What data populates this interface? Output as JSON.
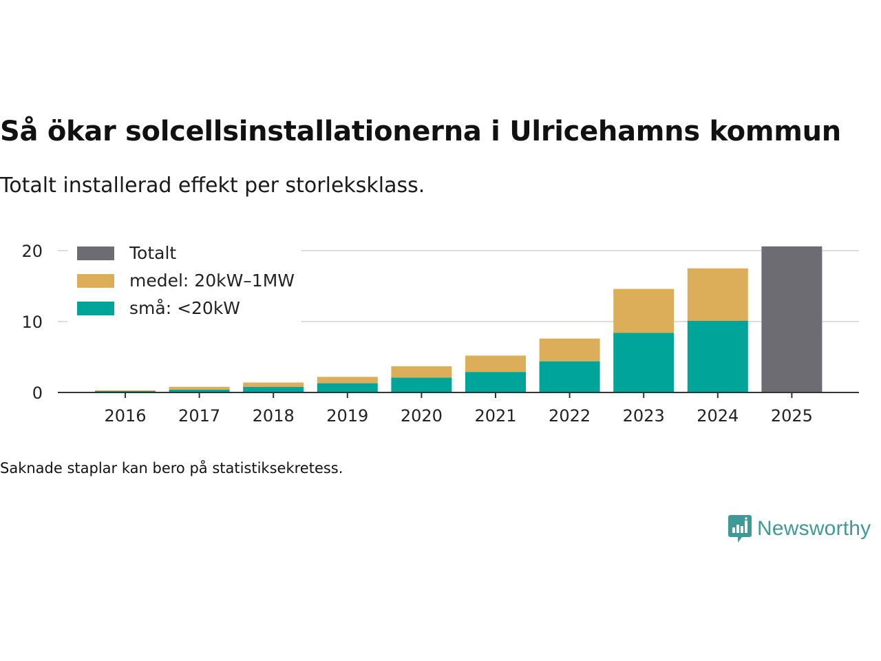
{
  "title": "Så ökar solcellsinstallationerna i Ulricehamns kommun",
  "subtitle": "Totalt installerad effekt per storleksklass.",
  "footnote": "Saknade staplar kan bero på statistiksekretess.",
  "brand": {
    "name": "Newsworthy",
    "icon": "newsworthy-logo-icon",
    "color": "#3d9a96"
  },
  "chart_data": {
    "type": "bar",
    "stacked": true,
    "title": "Så ökar solcellsinstallationerna i Ulricehamns kommun",
    "subtitle": "Totalt installerad effekt per storleksklass.",
    "xlabel": "",
    "ylabel": "",
    "ylim": [
      0,
      21
    ],
    "yticks": [
      0,
      10,
      20
    ],
    "grid": true,
    "legend_position": "top-left",
    "categories": [
      "2016",
      "2017",
      "2018",
      "2019",
      "2020",
      "2021",
      "2022",
      "2023",
      "2024",
      "2025"
    ],
    "series": [
      {
        "name": "små: <20kW",
        "color": "#00a499",
        "values": [
          0.2,
          0.4,
          0.8,
          1.3,
          2.1,
          2.9,
          4.4,
          8.4,
          10.1,
          null
        ]
      },
      {
        "name": "medel: 20kW–1MW",
        "color": "#dcae5a",
        "values": [
          0.1,
          0.4,
          0.6,
          0.9,
          1.6,
          2.3,
          3.2,
          6.2,
          7.4,
          null
        ]
      },
      {
        "name": "Totalt",
        "color": "#6d6c72",
        "values": [
          null,
          null,
          null,
          null,
          null,
          null,
          null,
          null,
          null,
          20.6
        ]
      }
    ],
    "legend_order": [
      "Totalt",
      "medel: 20kW–1MW",
      "små: <20kW"
    ]
  }
}
